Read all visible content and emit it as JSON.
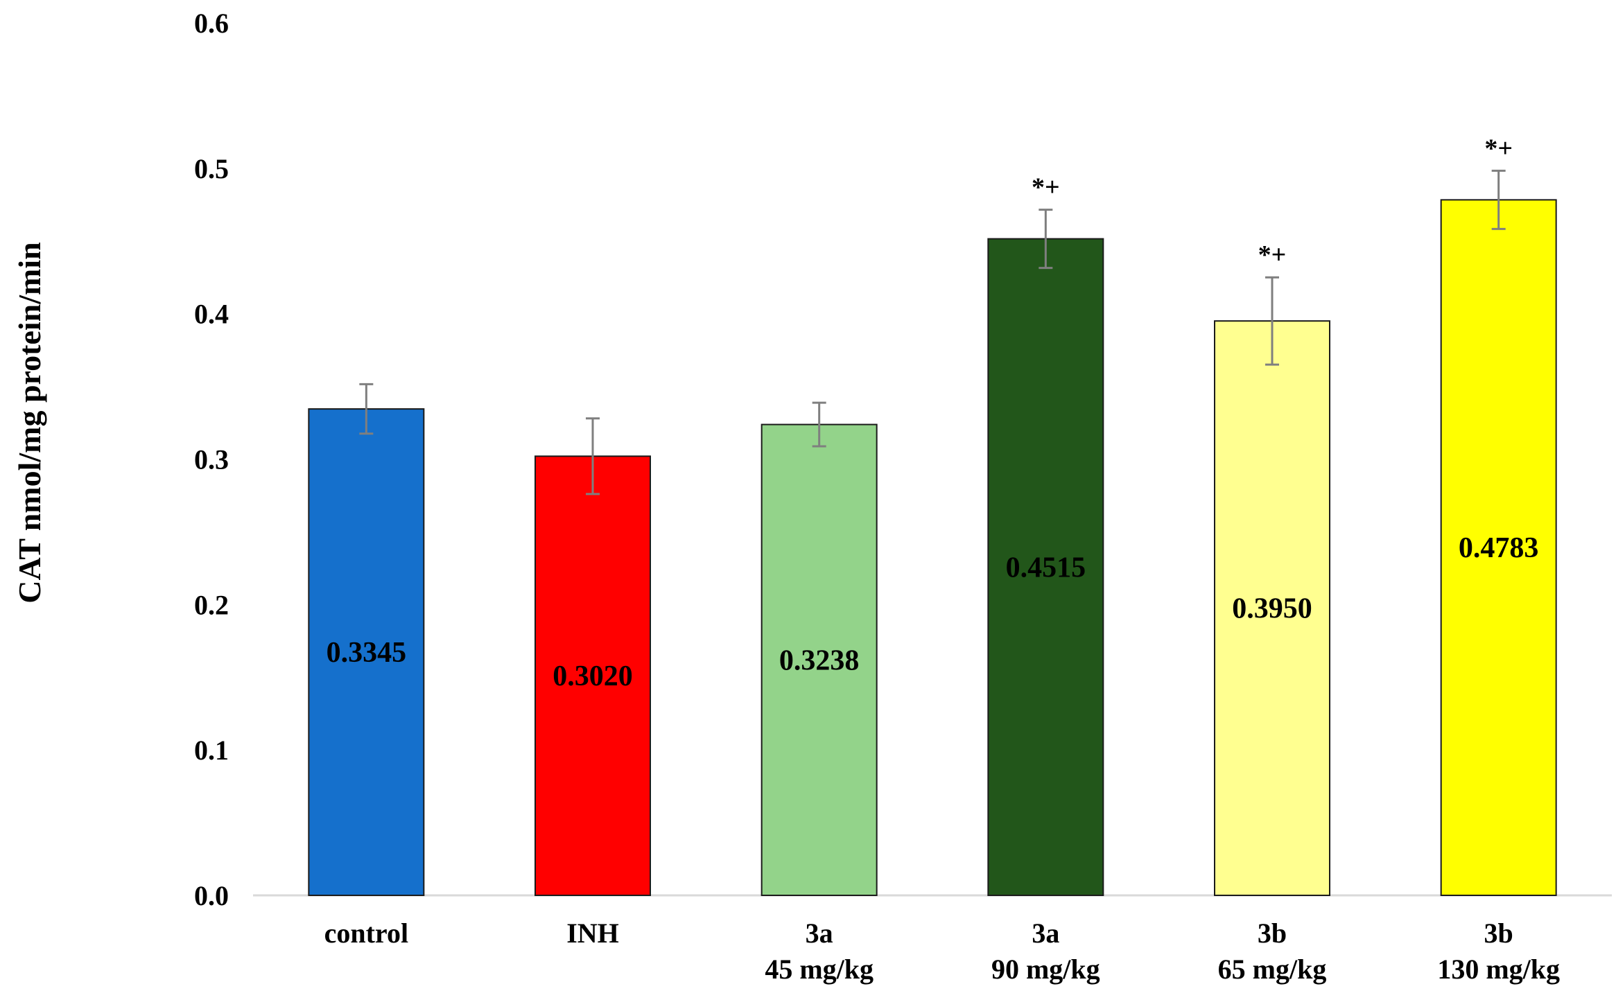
{
  "chart_data": {
    "type": "bar",
    "title": "",
    "xlabel": "",
    "ylabel": "CAT nmol/mg protein/min",
    "ylim": [
      0,
      0.6
    ],
    "yticks": [
      "0.0",
      "0.1",
      "0.2",
      "0.3",
      "0.4",
      "0.5",
      "0.6"
    ],
    "grid": false,
    "categories": [
      [
        "control"
      ],
      [
        "INH"
      ],
      [
        "3a",
        "45 mg/kg"
      ],
      [
        "3a",
        "90 mg/kg"
      ],
      [
        "3b",
        "65 mg/kg"
      ],
      [
        "3b",
        "130 mg/kg"
      ]
    ],
    "values": [
      0.3345,
      0.302,
      0.3238,
      0.4515,
      0.395,
      0.4783
    ],
    "value_labels": [
      "0.3345",
      "0.3020",
      "0.3238",
      "0.4515",
      "0.3950",
      "0.4783"
    ],
    "error": [
      0.017,
      0.026,
      0.015,
      0.02,
      0.03,
      0.02
    ],
    "significance": [
      "",
      "",
      "",
      "*+",
      "*+",
      "*+"
    ],
    "colors": [
      "#1570CC",
      "#FF0000",
      "#93D38A",
      "#22561A",
      "#FFFF90",
      "#FFFF00"
    ]
  }
}
